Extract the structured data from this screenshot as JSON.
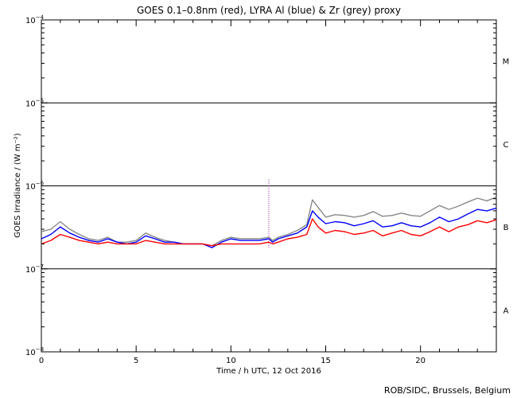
{
  "chart_data": {
    "type": "line",
    "title": "GOES 0.1–0.8nm (red), LYRA Al (blue) & Zr (grey) proxy",
    "xlabel": "Time / h UTC, 12 Oct 2016",
    "ylabel": "GOES Irradiance / (W m⁻²)",
    "credit": "ROB/SIDC, Brussels, Belgium",
    "xlim": [
      0,
      24
    ],
    "ylim": [
      1e-08,
      0.0001
    ],
    "yscale": "log",
    "x_ticks": [
      0,
      5,
      10,
      15,
      20
    ],
    "x_tick_labels": [
      "0",
      "5",
      "10",
      "15",
      "20"
    ],
    "y_ticks": [
      1e-08,
      1e-07,
      1e-06,
      1e-05,
      0.0001
    ],
    "y_tick_labels": [
      {
        "base": "10",
        "exp": "−8"
      },
      {
        "base": "10",
        "exp": "−7"
      },
      {
        "base": "10",
        "exp": "−6"
      },
      {
        "base": "10",
        "exp": "−5"
      },
      {
        "base": "10",
        "exp": "−4"
      }
    ],
    "flare_class_lines": [
      1e-07,
      1e-06,
      1e-05
    ],
    "flare_classes": [
      {
        "label": "A",
        "value": 3.2e-08
      },
      {
        "label": "B",
        "value": 3.2e-07
      },
      {
        "label": "C",
        "value": 3.2e-06
      },
      {
        "label": "M",
        "value": 3.2e-05
      }
    ],
    "grid": false,
    "colors": {
      "goes": "#ff0000",
      "lyra_al": "#0000ff",
      "lyra_zr": "#888888",
      "axes": "#000000"
    },
    "series": [
      {
        "name": "GOES 0.1–0.8nm",
        "color": "#ff0000",
        "x": [
          0,
          0.5,
          1.0,
          1.5,
          2.0,
          2.5,
          3.0,
          3.5,
          4.0,
          4.5,
          5.0,
          5.5,
          6.0,
          6.5,
          7.0,
          7.5,
          8.0,
          8.5,
          9.0,
          9.5,
          10.0,
          10.5,
          11.0,
          11.5,
          12.0,
          12.2,
          12.5,
          13.0,
          13.5,
          14.0,
          14.3,
          14.6,
          15.0,
          15.5,
          16.0,
          16.5,
          17.0,
          17.5,
          18.0,
          18.5,
          19.0,
          19.5,
          20.0,
          20.5,
          21.0,
          21.5,
          22.0,
          22.5,
          23.0,
          23.5,
          24.0
        ],
        "y": [
          2e-07,
          2.2e-07,
          2.6e-07,
          2.4e-07,
          2.2e-07,
          2.1e-07,
          2e-07,
          2.1e-07,
          2e-07,
          2e-07,
          2e-07,
          2.2e-07,
          2.1e-07,
          2e-07,
          2e-07,
          2e-07,
          2e-07,
          2e-07,
          1.9e-07,
          2e-07,
          2e-07,
          2e-07,
          2e-07,
          2e-07,
          2.1e-07,
          2e-07,
          2.1e-07,
          2.3e-07,
          2.4e-07,
          2.6e-07,
          4e-07,
          3.2e-07,
          2.7e-07,
          2.9e-07,
          2.8e-07,
          2.6e-07,
          2.7e-07,
          2.9e-07,
          2.5e-07,
          2.7e-07,
          2.9e-07,
          2.6e-07,
          2.5e-07,
          2.8e-07,
          3.2e-07,
          2.8e-07,
          3.2e-07,
          3.4e-07,
          3.8e-07,
          3.6e-07,
          3.9e-07
        ]
      },
      {
        "name": "LYRA Al",
        "color": "#0000ff",
        "x": [
          0,
          0.5,
          1.0,
          1.5,
          2.0,
          2.5,
          3.0,
          3.5,
          4.0,
          4.5,
          5.0,
          5.5,
          6.0,
          6.5,
          7.0,
          7.5,
          8.0,
          8.5,
          9.0,
          9.5,
          10.0,
          10.5,
          11.0,
          11.5,
          12.0,
          12.2,
          12.5,
          13.0,
          13.5,
          14.0,
          14.3,
          14.6,
          15.0,
          15.5,
          16.0,
          16.5,
          17.0,
          17.5,
          18.0,
          18.5,
          19.0,
          19.5,
          20.0,
          20.5,
          21.0,
          21.5,
          22.0,
          22.5,
          23.0,
          23.5,
          24.0
        ],
        "y": [
          2.3e-07,
          2.6e-07,
          3.2e-07,
          2.7e-07,
          2.4e-07,
          2.2e-07,
          2.1e-07,
          2.3e-07,
          2.1e-07,
          2e-07,
          2.1e-07,
          2.5e-07,
          2.3e-07,
          2.1e-07,
          2.1e-07,
          2e-07,
          2e-07,
          2e-07,
          1.8e-07,
          2.1e-07,
          2.3e-07,
          2.2e-07,
          2.2e-07,
          2.2e-07,
          2.3e-07,
          2.1e-07,
          2.3e-07,
          2.5e-07,
          2.7e-07,
          3.2e-07,
          5e-07,
          4.2e-07,
          3.5e-07,
          3.7e-07,
          3.6e-07,
          3.3e-07,
          3.5e-07,
          3.8e-07,
          3.2e-07,
          3.3e-07,
          3.6e-07,
          3.3e-07,
          3.2e-07,
          3.6e-07,
          4.2e-07,
          3.7e-07,
          4e-07,
          4.6e-07,
          5.2e-07,
          5e-07,
          5.4e-07
        ]
      },
      {
        "name": "LYRA Zr",
        "color": "#888888",
        "x": [
          0,
          0.5,
          1.0,
          1.5,
          2.0,
          2.5,
          3.0,
          3.5,
          4.0,
          4.5,
          5.0,
          5.5,
          6.0,
          6.5,
          7.0,
          7.5,
          8.0,
          8.5,
          9.0,
          9.5,
          10.0,
          10.5,
          11.0,
          11.5,
          12.0,
          12.2,
          12.5,
          13.0,
          13.5,
          14.0,
          14.3,
          14.6,
          15.0,
          15.5,
          16.0,
          16.5,
          17.0,
          17.5,
          18.0,
          18.5,
          19.0,
          19.5,
          20.0,
          20.5,
          21.0,
          21.5,
          22.0,
          22.5,
          23.0,
          23.5,
          24.0
        ],
        "y": [
          2.8e-07,
          3e-07,
          3.7e-07,
          3e-07,
          2.6e-07,
          2.3e-07,
          2.2e-07,
          2.4e-07,
          2.1e-07,
          2.1e-07,
          2.2e-07,
          2.7e-07,
          2.4e-07,
          2.2e-07,
          2.1e-07,
          2e-07,
          2e-07,
          2e-07,
          1.9e-07,
          2.2e-07,
          2.4e-07,
          2.3e-07,
          2.3e-07,
          2.3e-07,
          2.4e-07,
          2.2e-07,
          2.4e-07,
          2.6e-07,
          2.9e-07,
          3.4e-07,
          6.8e-07,
          5.5e-07,
          4.2e-07,
          4.5e-07,
          4.4e-07,
          4.2e-07,
          4.4e-07,
          4.9e-07,
          4.3e-07,
          4.4e-07,
          4.7e-07,
          4.4e-07,
          4.3e-07,
          5e-07,
          5.8e-07,
          5.2e-07,
          5.7e-07,
          6.4e-07,
          7.1e-07,
          6.6e-07,
          7.3e-07
        ]
      }
    ],
    "spike": {
      "x": 12.0,
      "y_top": 1.2e-06,
      "y_bottom": 1.8e-07
    }
  }
}
